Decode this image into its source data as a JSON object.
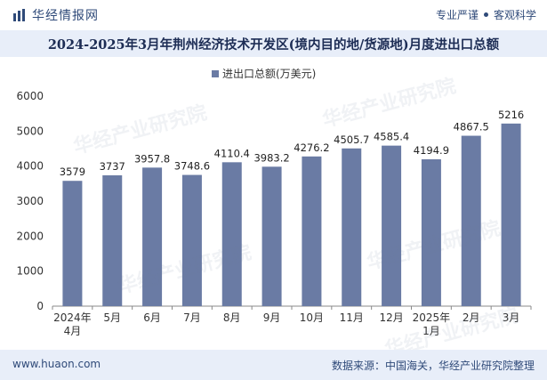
{
  "header": {
    "brand_name": "华经情报网",
    "tag_1": "专业严谨",
    "tag_2": "客观科学",
    "title": "2024-2025年3月年荆州经济技术开发区(境内目的地/货源地)月度进出口总额"
  },
  "footer": {
    "site": "www.huaon.com",
    "source": "数据来源：中国海关，华经产业研究院整理"
  },
  "watermark": "华经产业研究院",
  "colors": {
    "bar": "#6a7ba4",
    "header_band": "#e8eef9",
    "brand": "#2f4a79"
  },
  "chart_data": {
    "type": "bar",
    "categories": [
      "2024年4月",
      "5月",
      "6月",
      "7月",
      "8月",
      "9月",
      "10月",
      "11月",
      "12月",
      "2025年1月",
      "2月",
      "3月"
    ],
    "series": [
      {
        "name": "进出口总额(万美元)",
        "values": [
          3579,
          3737,
          3957.8,
          3748.6,
          4110.4,
          3983.2,
          4276.2,
          4505.7,
          4585.4,
          4194.9,
          4867.5,
          5216
        ],
        "labels": [
          "3579",
          "3737",
          "3957.8",
          "3748.6",
          "4110.4",
          "3983.2",
          "4276.2",
          "4505.7",
          "4585.4",
          "4194.9",
          "4867.5",
          "5216"
        ]
      }
    ],
    "ylim": [
      0,
      6000
    ],
    "yticks": [
      "0",
      "1000",
      "2000",
      "3000",
      "4000",
      "5000",
      "6000"
    ],
    "xlabel": "",
    "ylabel": "",
    "legend": "top-center",
    "grid": false
  }
}
